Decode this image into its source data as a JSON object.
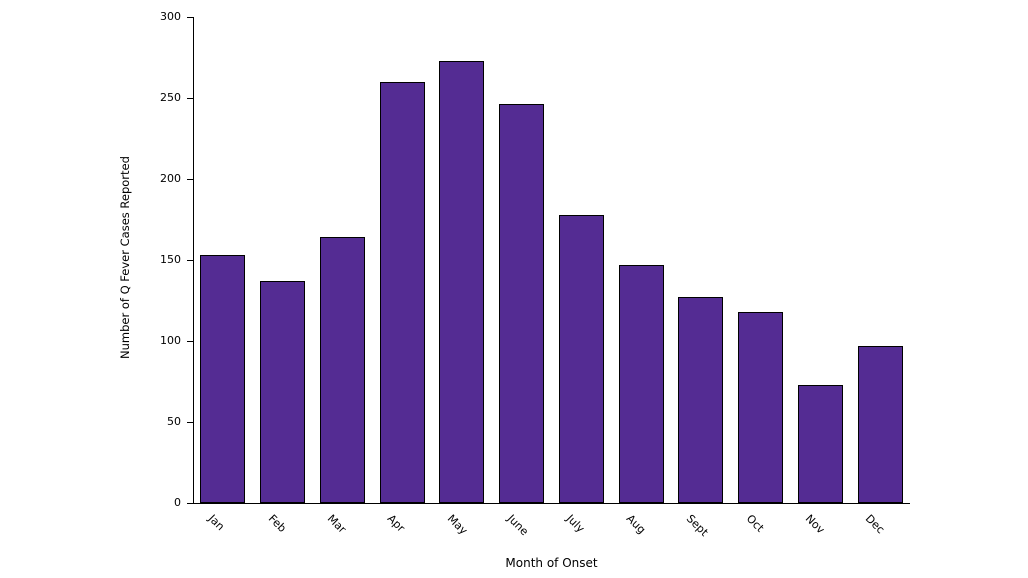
{
  "chart_data": {
    "type": "bar",
    "title": "",
    "xlabel": "Month of Onset",
    "ylabel": "Number of Q Fever Cases Reported",
    "categories": [
      "Jan",
      "Feb",
      "Mar",
      "Apr",
      "May",
      "June",
      "July",
      "Aug",
      "Sept",
      "Oct",
      "Nov",
      "Dec"
    ],
    "values": [
      153,
      137,
      164,
      260,
      273,
      246,
      178,
      147,
      127,
      118,
      73,
      97
    ],
    "ylim": [
      0,
      300
    ],
    "ytick_step": 50,
    "ytick_labels": [
      "0",
      "50",
      "100",
      "150",
      "200",
      "250",
      "300"
    ],
    "grid": false,
    "legend": "none",
    "bar_color": "#542c93",
    "bar_border_color": "#000000",
    "axis_color": "#000000",
    "background_color": "#ffffff"
  }
}
